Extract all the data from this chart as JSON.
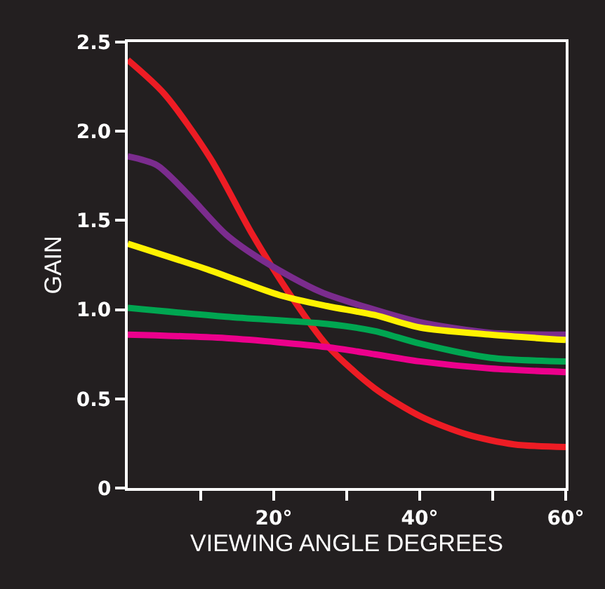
{
  "chart_data": {
    "type": "line",
    "xlabel": "VIEWING ANGLE DEGREES",
    "ylabel": "GAIN",
    "xlim": [
      0,
      60
    ],
    "xticks": [
      {
        "value": 10,
        "label": null
      },
      {
        "value": 20,
        "label": "20°"
      },
      {
        "value": 30,
        "label": null
      },
      {
        "value": 40,
        "label": "40°"
      },
      {
        "value": 50,
        "label": null
      },
      {
        "value": 60,
        "label": "60°"
      }
    ],
    "ylim": [
      0,
      2.5
    ],
    "yticks": [
      0,
      {
        "value": 0.5,
        "label": "0.5"
      },
      {
        "value": 1,
        "label": "1.0"
      },
      {
        "value": 1.5,
        "label": "1.5"
      },
      {
        "value": 2,
        "label": "2.0"
      },
      {
        "value": 2.5,
        "label": "2.5"
      }
    ],
    "grid": false,
    "marker": "none",
    "line_style": "solid",
    "series": [
      {
        "color": "#ed1c24",
        "x": [
          0,
          5,
          11.3,
          17.1,
          22.3,
          27.3,
          33.8,
          40.2,
          46.5,
          52.9,
          60
        ],
        "values": [
          2.4,
          2.21,
          1.85,
          1.42,
          1.08,
          0.8,
          0.56,
          0.4,
          0.3,
          0.245,
          0.23
        ]
      },
      {
        "color": "#7b2c8e",
        "x": [
          0,
          4,
          8.4,
          13.5,
          18.7,
          26.4,
          33.8,
          40,
          49.7,
          60
        ],
        "values": [
          1.86,
          1.81,
          1.64,
          1.42,
          1.27,
          1.1,
          1.0,
          0.93,
          0.87,
          0.86
        ]
      },
      {
        "color": "#fff200",
        "x": [
          0,
          11.3,
          20.9,
          27.3,
          33.8,
          40,
          49.7,
          60
        ],
        "values": [
          1.37,
          1.22,
          1.08,
          1.02,
          0.97,
          0.9,
          0.86,
          0.83
        ]
      },
      {
        "color": "#00a651",
        "x": [
          0,
          13.5,
          27.3,
          33.8,
          40,
          49.7,
          60
        ],
        "values": [
          1.01,
          0.96,
          0.92,
          0.88,
          0.81,
          0.73,
          0.71
        ]
      },
      {
        "color": "#ec008c",
        "x": [
          0,
          13.5,
          27.3,
          33.8,
          40,
          49.7,
          60
        ],
        "values": [
          0.86,
          0.84,
          0.79,
          0.75,
          0.71,
          0.67,
          0.65
        ]
      }
    ]
  }
}
